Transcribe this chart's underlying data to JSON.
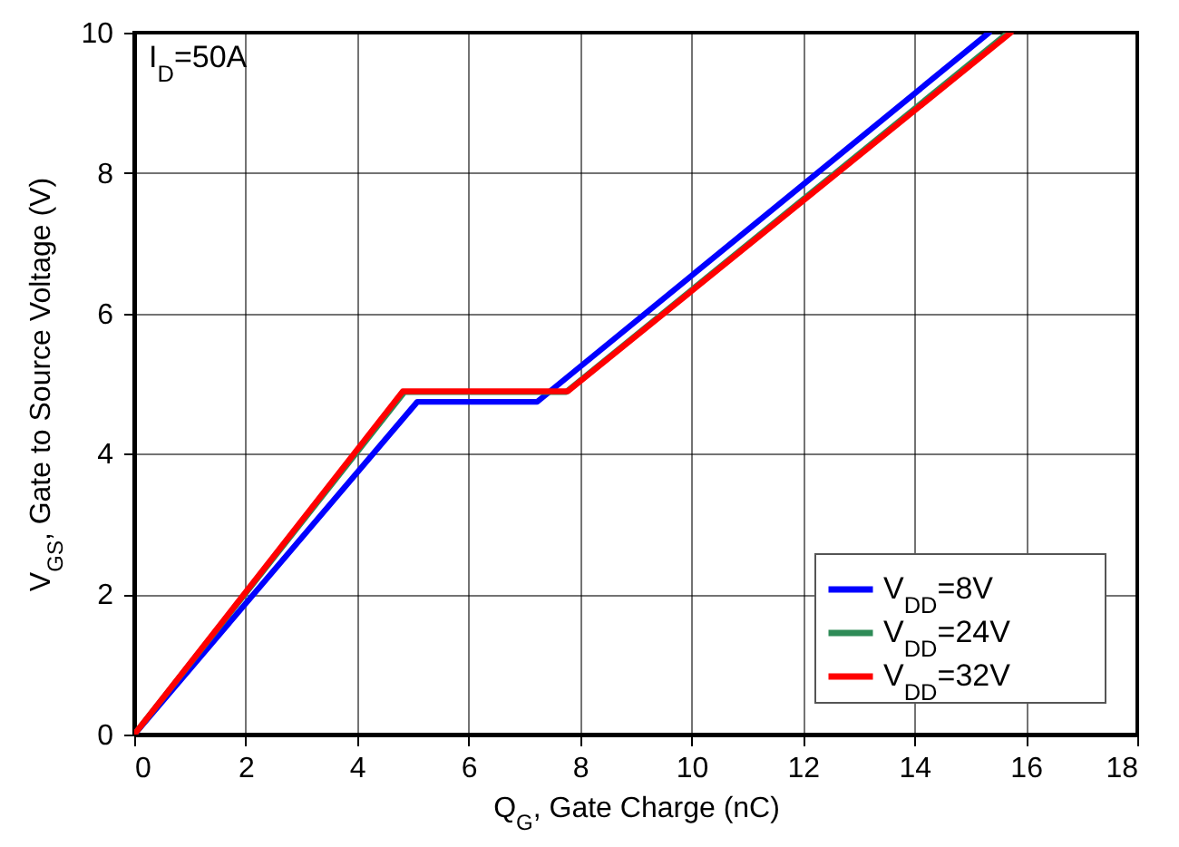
{
  "chart_data": {
    "type": "line",
    "xlabel": "Q$_{G}$, Gate Charge (nC)",
    "ylabel": "V$_{GS}$, Gate to Source Voltage (V)",
    "annotations": [
      "I$_{D}$=50A"
    ],
    "series": [
      {
        "name": "V$_{DD}$=8V",
        "color": "#0000ff",
        "x": [
          0,
          5.08,
          7.23,
          15.34
        ],
        "values": [
          0,
          4.74,
          4.74,
          10
        ]
      },
      {
        "name": "V$_{DD}$=24V",
        "color": "#2e8b57",
        "x": [
          0,
          4.85,
          7.75,
          15.68
        ],
        "values": [
          0,
          4.88,
          4.88,
          10
        ]
      },
      {
        "name": "V$_{DD}$=32V",
        "color": "#ff0000",
        "x": [
          0,
          4.82,
          7.78,
          15.73
        ],
        "values": [
          0,
          4.89,
          4.89,
          10
        ]
      }
    ],
    "xlim": [
      0,
      18
    ],
    "xticks": [
      0,
      2,
      4,
      6,
      8,
      10,
      12,
      14,
      16,
      18
    ],
    "ylim": [
      0,
      10
    ],
    "yticks": [
      0,
      2,
      4,
      6,
      8,
      10
    ],
    "grid": true,
    "legend": "bottom right",
    "line_style": "solid",
    "marker": "none"
  }
}
